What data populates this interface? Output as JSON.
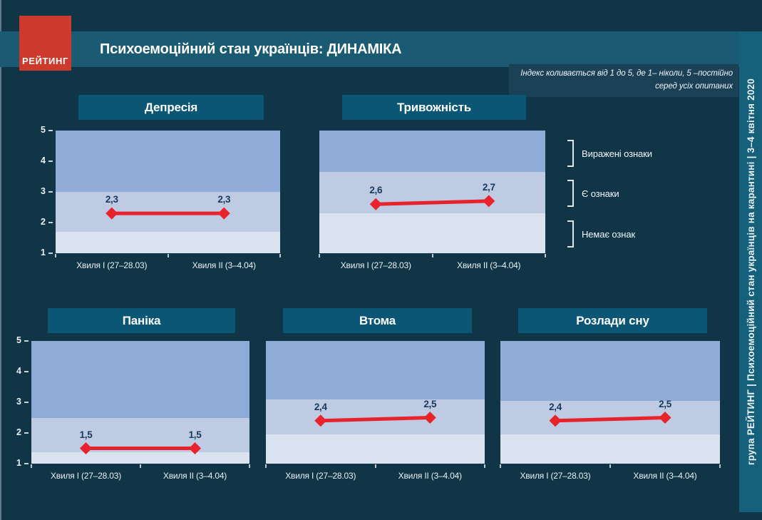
{
  "colors": {
    "background": "#0F3546",
    "header_band": "#1A5A72",
    "chart_title_box": "#0B5674",
    "note_box": "#1B4156",
    "side_strip": "#15607A",
    "zone_high": "#8FACD8",
    "zone_mid": "#BECBE2",
    "zone_low": "#DAE1EF",
    "line": "#E8232B",
    "logo_red": "#CE392B",
    "value_label": "#17395E"
  },
  "logo": {
    "text": "РЕЙТИНГ"
  },
  "header": {
    "title": "Психоемоційний стан українців: ДИНАМІКА"
  },
  "note": {
    "line1": "Індекс коливається від 1 до 5, де 1– ніколи, 5 –постійно",
    "line2": "серед усіх опитаних"
  },
  "sidebar": {
    "text": "група РЕЙТИНГ  |  Психоемоційний стан українців на карантині  |  3–4 квітня 2020"
  },
  "legend": {
    "items": [
      "Виражені ознаки",
      "Є ознаки",
      "Немає ознак"
    ]
  },
  "chart_data": [
    {
      "type": "line",
      "title": "Депресія",
      "categories": [
        "Хвиля I (27–28.03)",
        "Хвиля II (3–4.04)"
      ],
      "values": [
        2.3,
        2.3
      ],
      "value_labels": [
        "2,3",
        "2,3"
      ],
      "ylim": [
        1,
        5
      ],
      "yticks": [
        1,
        2,
        3,
        4,
        5
      ],
      "show_y_axis": true,
      "zone_boundaries": [
        3.0,
        1.7
      ]
    },
    {
      "type": "line",
      "title": "Тривожність",
      "categories": [
        "Хвиля I (27–28.03)",
        "Хвиля II (3–4.04)"
      ],
      "values": [
        2.6,
        2.7
      ],
      "value_labels": [
        "2,6",
        "2,7"
      ],
      "ylim": [
        1,
        5
      ],
      "yticks": [
        1,
        2,
        3,
        4,
        5
      ],
      "show_y_axis": false,
      "zone_boundaries": [
        3.65,
        2.3
      ]
    },
    {
      "type": "line",
      "title": "Паніка",
      "categories": [
        "Хвиля I (27–28.03)",
        "Хвиля II (3–4.04)"
      ],
      "values": [
        1.5,
        1.5
      ],
      "value_labels": [
        "1,5",
        "1,5"
      ],
      "ylim": [
        1,
        5
      ],
      "yticks": [
        1,
        2,
        3,
        4,
        5
      ],
      "show_y_axis": true,
      "zone_boundaries": [
        2.5,
        1.37
      ]
    },
    {
      "type": "line",
      "title": "Втома",
      "categories": [
        "Хвиля I (27–28.03)",
        "Хвиля II (3–4.04)"
      ],
      "values": [
        2.4,
        2.5
      ],
      "value_labels": [
        "2,4",
        "2,5"
      ],
      "ylim": [
        1,
        5
      ],
      "yticks": [
        1,
        2,
        3,
        4,
        5
      ],
      "show_y_axis": false,
      "zone_boundaries": [
        3.1,
        1.95
      ]
    },
    {
      "type": "line",
      "title": "Розлади сну",
      "categories": [
        "Хвиля I (27–28.03)",
        "Хвиля II (3–4.04)"
      ],
      "values": [
        2.4,
        2.5
      ],
      "value_labels": [
        "2,4",
        "2,5"
      ],
      "ylim": [
        1,
        5
      ],
      "yticks": [
        1,
        2,
        3,
        4,
        5
      ],
      "show_y_axis": false,
      "zone_boundaries": [
        3.05,
        1.95
      ]
    }
  ]
}
